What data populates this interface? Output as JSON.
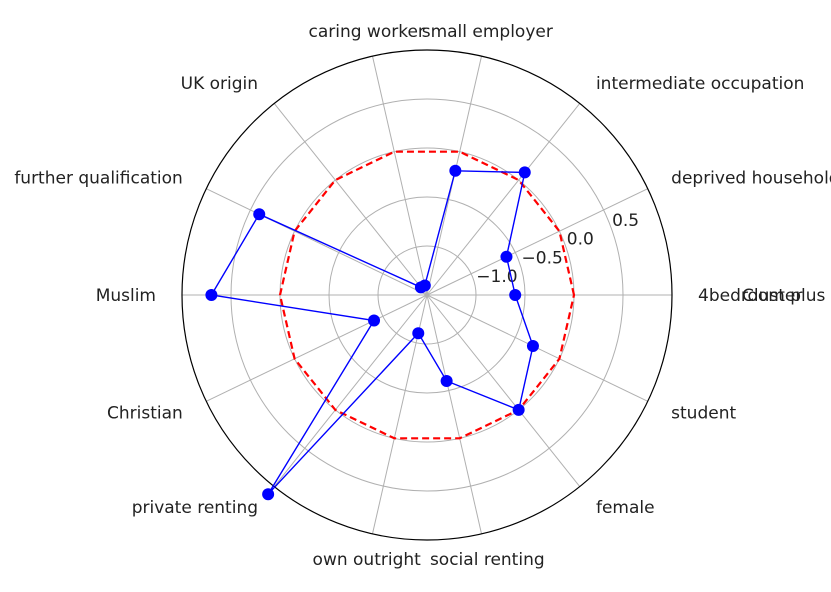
{
  "chart_data": {
    "type": "radar",
    "title": "",
    "categories": [
      "4bedroom plus",
      "deprived household",
      "intermediate occupation",
      "small employer",
      "caring worker",
      "UK origin",
      "further qualification",
      "Muslim",
      "Christian",
      "private renting",
      "own outright",
      "social renting",
      "female",
      "student"
    ],
    "overlay_label": "Cluster",
    "radial_range": [
      -1.5,
      1.0
    ],
    "radial_ticks": [
      -1.0,
      -0.5,
      0.0,
      0.5
    ],
    "radial_tick_labels": [
      "−1.0",
      "−0.5",
      "0.0",
      "0.5"
    ],
    "series": [
      {
        "values": [
          -0.6,
          -0.6,
          0.1,
          -0.2,
          -1.4,
          -1.4,
          0.4,
          0.7,
          -0.9,
          1.1,
          -1.1,
          -0.6,
          0.0,
          -0.3
        ],
        "color": "#0000ff",
        "marker": "circle",
        "line_style": "solid"
      },
      {
        "values": [
          0.0,
          0.0,
          0.0,
          0.0,
          0.0,
          0.0,
          0.0,
          0.0,
          0.0,
          0.0,
          0.0,
          0.0,
          0.0,
          0.0
        ],
        "color": "#ff0000",
        "line_style": "dashed"
      }
    ],
    "grid": true
  }
}
